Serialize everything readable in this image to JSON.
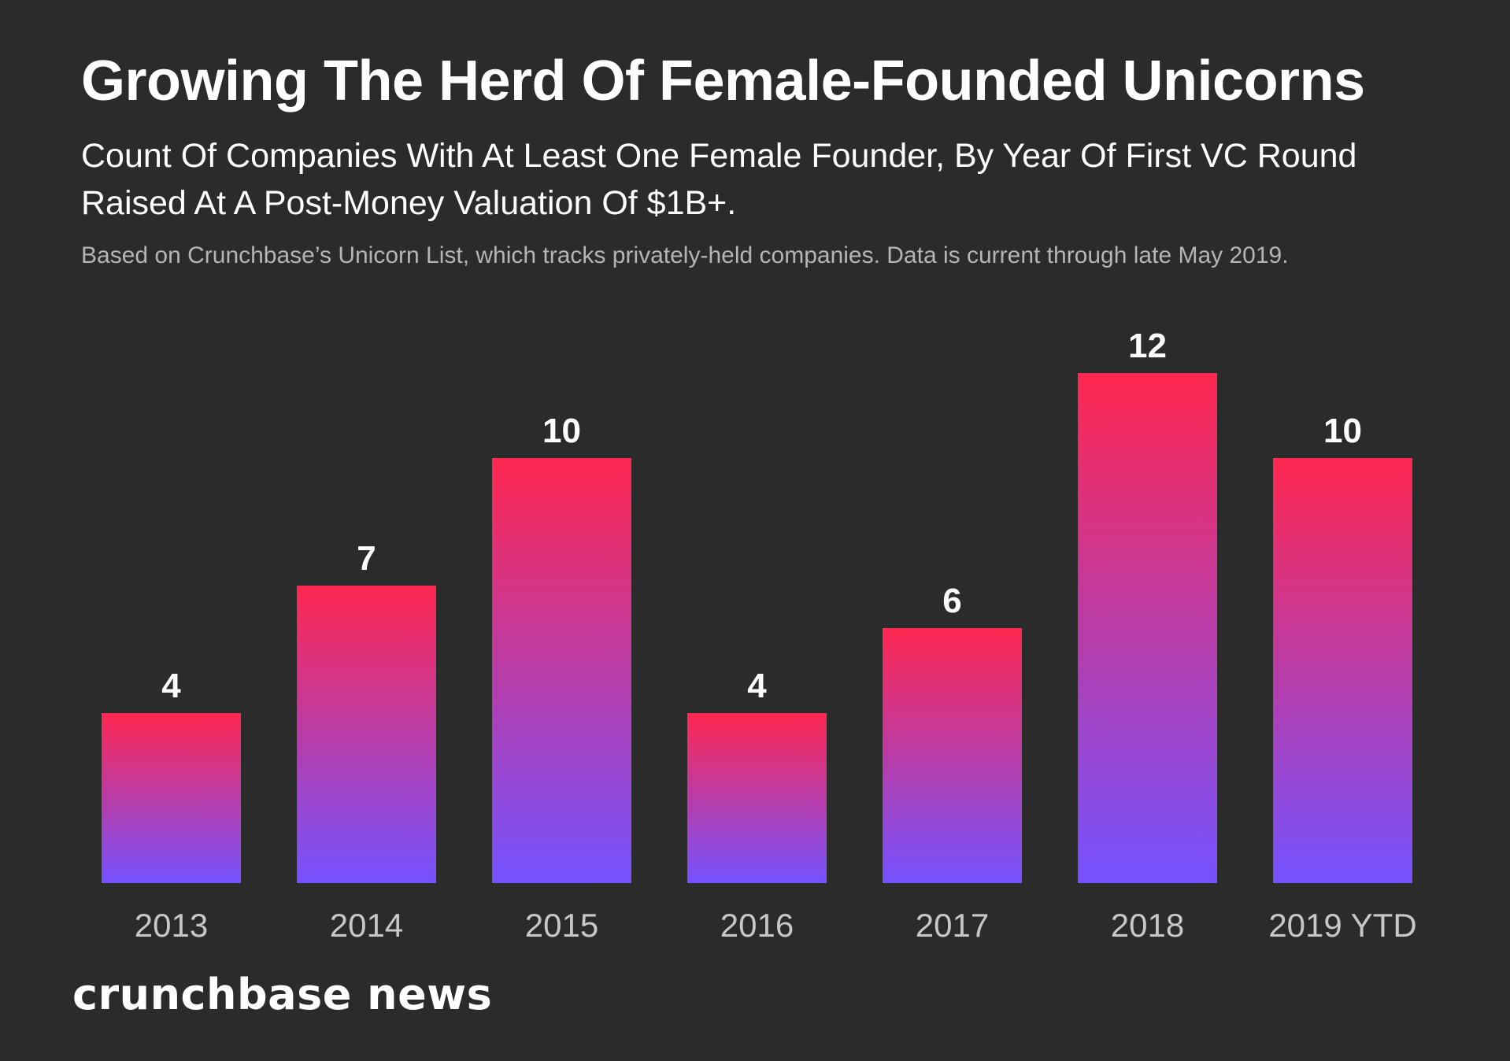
{
  "header": {
    "title": "Growing The Herd Of Female-Founded Unicorns",
    "subtitle": "Count Of Companies With At Least One Female Founder, By Year Of First VC Round Raised At A Post-Money Valuation Of $1B+.",
    "note": "Based on Crunchbase’s Unicorn List, which tracks privately-held companies. Data is current through late May 2019."
  },
  "brand": {
    "name": "crunchbase news"
  },
  "colors": {
    "background": "#2b2b2b",
    "bar_top": "#ff2750",
    "bar_bottom": "#7452ff",
    "category_label": "#c8c8c8",
    "value_label": "#ffffff"
  },
  "chart_data": {
    "type": "bar",
    "categories": [
      "2013",
      "2014",
      "2015",
      "2016",
      "2017",
      "2018",
      "2019 YTD"
    ],
    "values": [
      4,
      7,
      10,
      4,
      6,
      12,
      10
    ],
    "title": "Growing The Herd Of Female-Founded Unicorns",
    "xlabel": "",
    "ylabel": "",
    "ylim": [
      0,
      12
    ],
    "grid": false,
    "data_labels": true
  }
}
